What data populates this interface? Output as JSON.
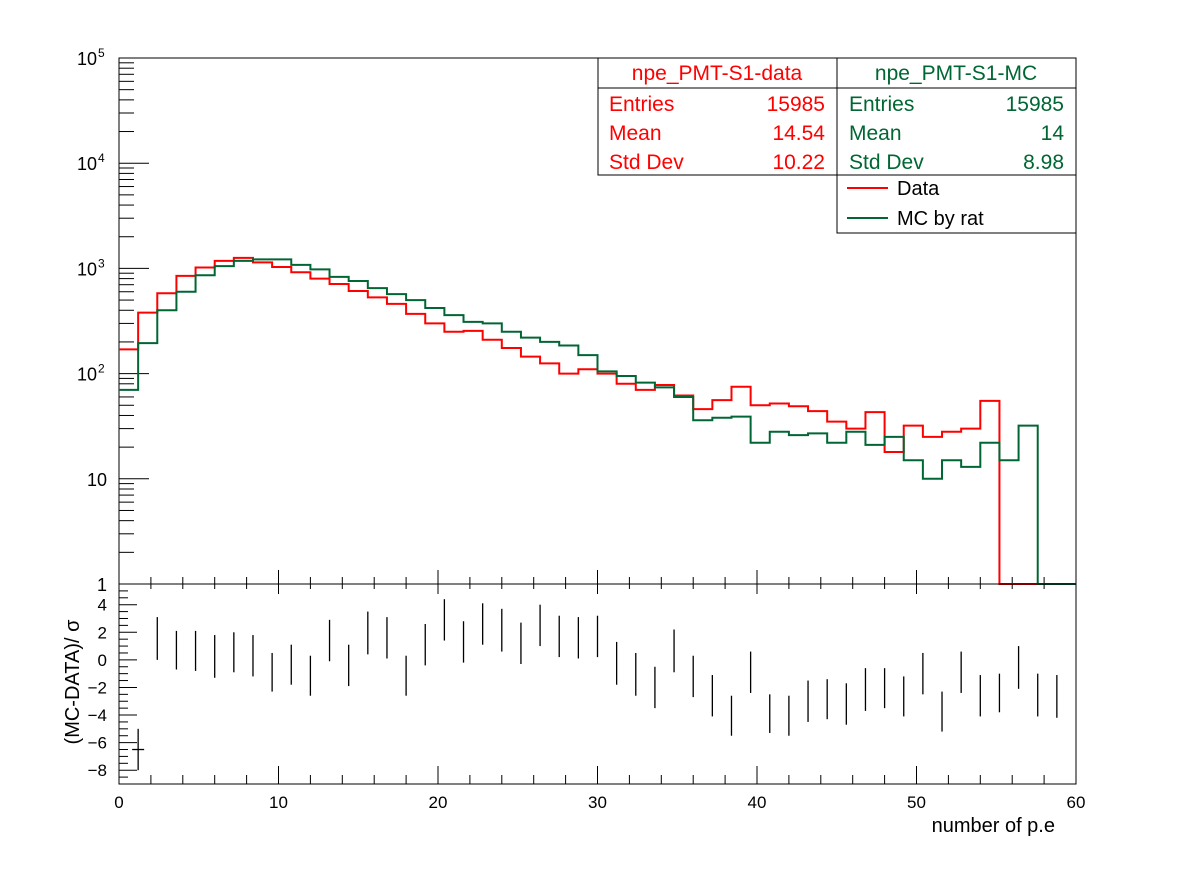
{
  "chart_data": [
    {
      "type": "line",
      "subtype": "step-histogram",
      "y_scale": "log",
      "xlim": [
        0,
        60
      ],
      "ylim": [
        1,
        100000
      ],
      "bin_width": 1.2,
      "x_tick_labels": [
        "0",
        "10",
        "20",
        "30",
        "40",
        "50",
        "60"
      ],
      "y_tick_labels": [
        {
          "base": "1",
          "exp": ""
        },
        {
          "base": "10",
          "exp": ""
        },
        {
          "base": "10",
          "exp": "2"
        },
        {
          "base": "10",
          "exp": "3"
        },
        {
          "base": "10",
          "exp": "4"
        },
        {
          "base": "10",
          "exp": "5"
        }
      ],
      "series": [
        {
          "name": "Data",
          "color": "#ff0000",
          "values": [
            170,
            380,
            580,
            850,
            1020,
            1180,
            1260,
            1140,
            1030,
            920,
            800,
            710,
            610,
            530,
            460,
            370,
            300,
            250,
            255,
            210,
            175,
            145,
            125,
            100,
            110,
            100,
            80,
            70,
            78,
            62,
            46,
            56,
            75,
            50,
            52,
            49,
            44,
            35,
            30,
            43,
            18,
            32,
            25,
            28,
            30,
            55
          ]
        },
        {
          "name": "MC by rat",
          "color": "#006633",
          "values": [
            70,
            195,
            400,
            600,
            860,
            1050,
            1180,
            1220,
            1220,
            1080,
            980,
            830,
            760,
            650,
            570,
            500,
            420,
            360,
            310,
            300,
            250,
            220,
            200,
            185,
            150,
            105,
            95,
            82,
            74,
            60,
            36,
            38,
            39,
            22,
            28,
            26,
            27,
            22,
            28,
            21,
            25,
            15,
            10,
            15,
            13,
            22,
            15,
            32
          ]
        }
      ],
      "stats_boxes": [
        {
          "title": "npe_PMT-S1-data",
          "color": "#ff0000",
          "rows": [
            {
              "label": "Entries",
              "value": "15985"
            },
            {
              "label": "Mean",
              "value": "14.54"
            },
            {
              "label": "Std Dev",
              "value": "10.22"
            }
          ]
        },
        {
          "title": "npe_PMT-S1-MC",
          "color": "#006633",
          "rows": [
            {
              "label": "Entries",
              "value": "15985"
            },
            {
              "label": "Mean",
              "value": "14"
            },
            {
              "label": "Std Dev",
              "value": "8.98"
            }
          ]
        }
      ],
      "legend": {
        "placement": "top-right",
        "entries": [
          {
            "label": "Data",
            "color": "#ff0000"
          },
          {
            "label": "MC by rat",
            "color": "#006633"
          }
        ]
      }
    },
    {
      "type": "scatter",
      "subtype": "error-bars",
      "xlim": [
        0,
        60
      ],
      "ylim": [
        -9,
        5.5
      ],
      "ylabel": "(MC-DATA)/ σ",
      "xlabel": "number of p.e",
      "x_tick_labels": [
        "0",
        "10",
        "20",
        "30",
        "40",
        "50",
        "60"
      ],
      "y_tick_labels": [
        "−8",
        "−6",
        "−4",
        "−2",
        "0",
        "2",
        "4"
      ],
      "points": [
        {
          "x": 1.2,
          "low": -8.0,
          "high": -5.0
        },
        {
          "x": 2.4,
          "low": 0.0,
          "high": 3.1
        },
        {
          "x": 3.6,
          "low": -0.7,
          "high": 2.1
        },
        {
          "x": 4.8,
          "low": -0.8,
          "high": 2.1
        },
        {
          "x": 6.0,
          "low": -1.3,
          "high": 1.8
        },
        {
          "x": 7.2,
          "low": -0.9,
          "high": 2.0
        },
        {
          "x": 8.4,
          "low": -1.2,
          "high": 1.8
        },
        {
          "x": 9.6,
          "low": -2.3,
          "high": 0.5
        },
        {
          "x": 10.8,
          "low": -1.8,
          "high": 1.1
        },
        {
          "x": 12.0,
          "low": -2.6,
          "high": 0.3
        },
        {
          "x": 13.2,
          "low": -0.1,
          "high": 2.9
        },
        {
          "x": 14.4,
          "low": -1.9,
          "high": 1.1
        },
        {
          "x": 15.6,
          "low": 0.4,
          "high": 3.5
        },
        {
          "x": 16.8,
          "low": 0.1,
          "high": 3.1
        },
        {
          "x": 18.0,
          "low": -2.6,
          "high": 0.3
        },
        {
          "x": 19.2,
          "low": -0.4,
          "high": 2.6
        },
        {
          "x": 20.4,
          "low": 1.4,
          "high": 4.4
        },
        {
          "x": 21.6,
          "low": -0.2,
          "high": 2.8
        },
        {
          "x": 22.8,
          "low": 1.1,
          "high": 4.1
        },
        {
          "x": 24.0,
          "low": 0.6,
          "high": 3.7
        },
        {
          "x": 25.2,
          "low": -0.3,
          "high": 2.7
        },
        {
          "x": 26.4,
          "low": 1.0,
          "high": 4.0
        },
        {
          "x": 27.6,
          "low": 0.2,
          "high": 3.2
        },
        {
          "x": 28.8,
          "low": 0.1,
          "high": 3.1
        },
        {
          "x": 30.0,
          "low": 0.2,
          "high": 3.2
        },
        {
          "x": 31.2,
          "low": -1.8,
          "high": 1.3
        },
        {
          "x": 32.4,
          "low": -2.6,
          "high": 0.5
        },
        {
          "x": 33.6,
          "low": -3.5,
          "high": -0.5
        },
        {
          "x": 34.8,
          "low": -0.9,
          "high": 2.2
        },
        {
          "x": 36.0,
          "low": -2.7,
          "high": 0.3
        },
        {
          "x": 37.2,
          "low": -4.1,
          "high": -1.1
        },
        {
          "x": 38.4,
          "low": -5.5,
          "high": -2.6
        },
        {
          "x": 39.6,
          "low": -2.4,
          "high": 0.6
        },
        {
          "x": 40.8,
          "low": -5.3,
          "high": -2.5
        },
        {
          "x": 42.0,
          "low": -5.5,
          "high": -2.6
        },
        {
          "x": 43.2,
          "low": -4.5,
          "high": -1.5
        },
        {
          "x": 44.4,
          "low": -4.3,
          "high": -1.4
        },
        {
          "x": 45.6,
          "low": -4.7,
          "high": -1.7
        },
        {
          "x": 46.8,
          "low": -3.7,
          "high": -0.6
        },
        {
          "x": 48.0,
          "low": -3.5,
          "high": -0.6
        },
        {
          "x": 49.2,
          "low": -4.1,
          "high": -1.2
        },
        {
          "x": 50.4,
          "low": -2.5,
          "high": 0.5
        },
        {
          "x": 51.6,
          "low": -5.2,
          "high": -2.3
        },
        {
          "x": 52.8,
          "low": -2.4,
          "high": 0.6
        },
        {
          "x": 54.0,
          "low": -4.1,
          "high": -1.1
        },
        {
          "x": 55.2,
          "low": -3.8,
          "high": -1.0
        },
        {
          "x": 56.4,
          "low": -2.1,
          "high": 1.0
        },
        {
          "x": 57.6,
          "low": -4.1,
          "high": -1.0
        },
        {
          "x": 58.8,
          "low": -4.2,
          "high": -1.1
        }
      ]
    }
  ]
}
